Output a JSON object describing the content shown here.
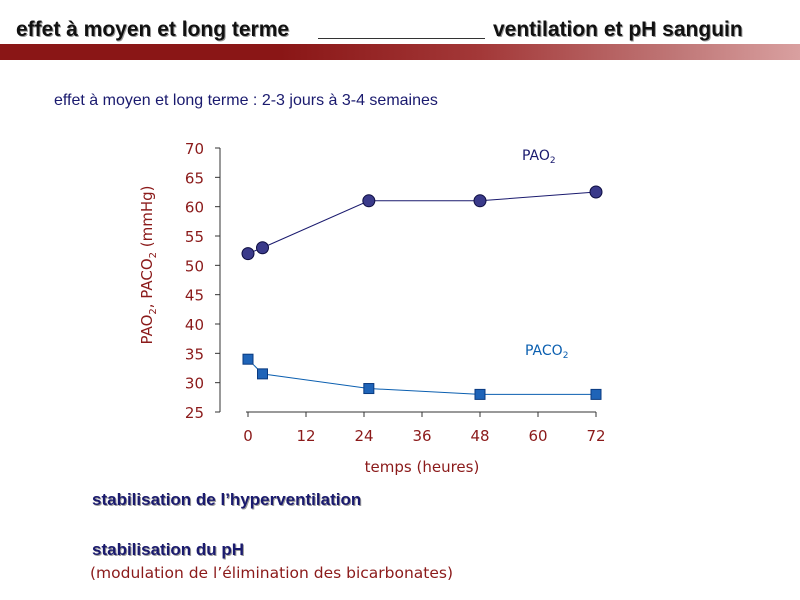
{
  "header": {
    "left": "effet à moyen et long terme",
    "right": "ventilation et pH sanguin"
  },
  "subtitle": "effet à moyen et long terme : 2-3 jours à 3-4 semaines",
  "colors": {
    "axis_text": "#8b1a1a",
    "pao2_series": "#1a1a6e",
    "paco2_series": "#0b5fb0",
    "bottom_text": "#1a1a6e"
  },
  "chart_data": {
    "type": "line",
    "xlabel": "temps (heures)",
    "ylabel_parts": [
      "PAO",
      "2",
      ", PACO",
      "2",
      " (mmHg)"
    ],
    "x_ticks": [
      0,
      12,
      24,
      36,
      48,
      60,
      72
    ],
    "y_ticks": [
      25,
      30,
      35,
      40,
      45,
      50,
      55,
      60,
      65,
      70
    ],
    "xlim": [
      0,
      72
    ],
    "ylim": [
      25,
      70
    ],
    "grid": false,
    "series": [
      {
        "name": "PAO2",
        "label_main": "PAO",
        "label_sub": "2",
        "marker": "circle",
        "x": [
          0,
          3,
          25,
          48,
          72
        ],
        "y": [
          52,
          53,
          61,
          61,
          62.5
        ]
      },
      {
        "name": "PACO2",
        "label_main": "PACO",
        "label_sub": "2",
        "marker": "square",
        "x": [
          0,
          3,
          25,
          48,
          72
        ],
        "y": [
          34,
          31.5,
          29,
          28,
          28
        ]
      }
    ]
  },
  "bottom": {
    "line1": "stabilisation de l’hyperventilation",
    "line2": "stabilisation du pH",
    "line3": "(modulation de l’élimination des bicarbonates)"
  }
}
